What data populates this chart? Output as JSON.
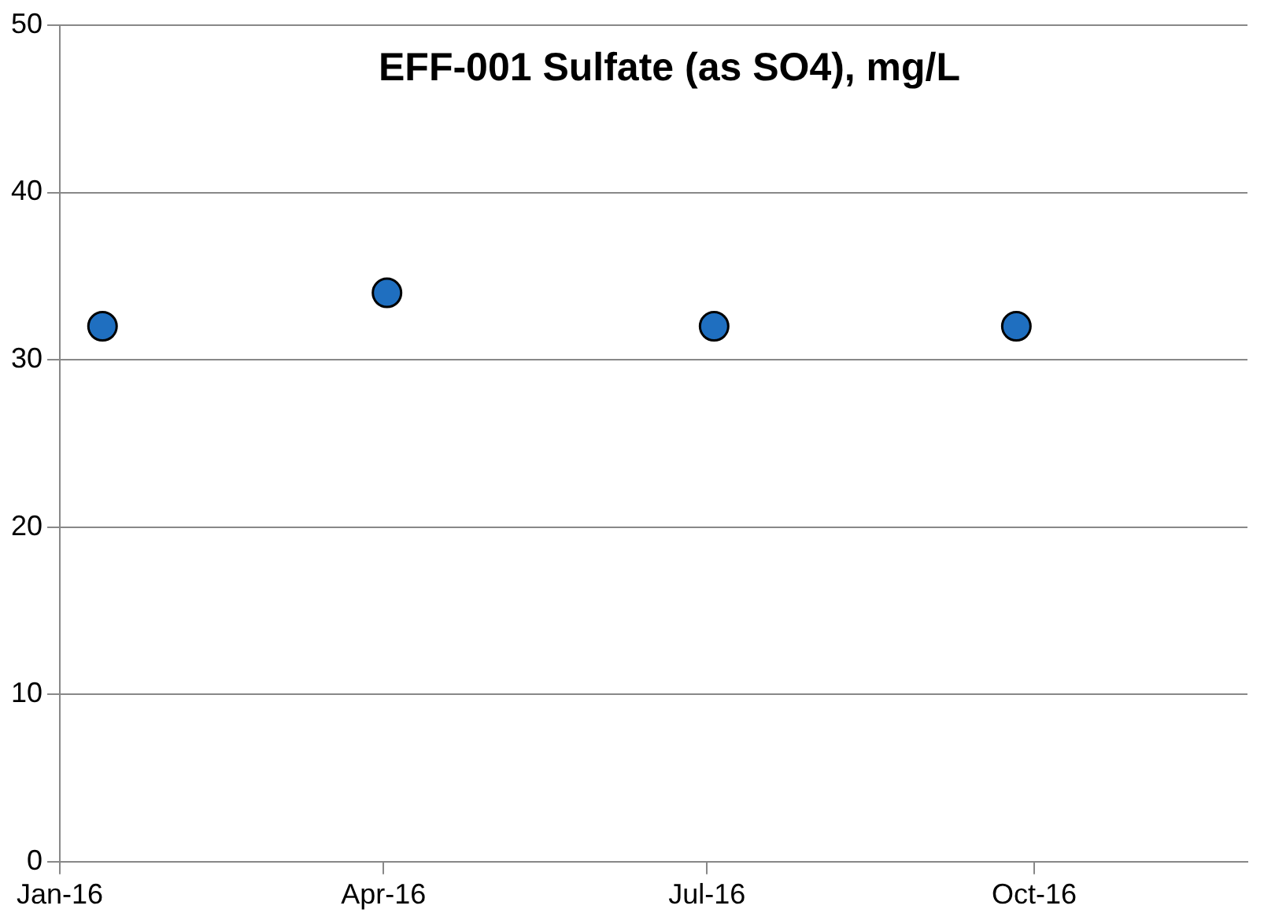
{
  "chart_data": {
    "type": "scatter",
    "title": "EFF-001 Sulfate (as SO4), mg/L",
    "x": [
      "2016-01-13",
      "2016-04-02",
      "2016-07-03",
      "2016-09-26"
    ],
    "series": [
      {
        "color": "#1f6fc0",
        "values": [
          32,
          34,
          32,
          32
        ]
      }
    ],
    "xlim": [
      "2016-01-01",
      "2016-11-30"
    ],
    "xticks": [
      {
        "value": "2016-01-01",
        "label": "Jan-16"
      },
      {
        "value": "2016-04-01",
        "label": "Apr-16"
      },
      {
        "value": "2016-07-01",
        "label": "Jul-16"
      },
      {
        "value": "2016-10-01",
        "label": "Oct-16"
      }
    ],
    "ylim": [
      0,
      50
    ],
    "yticks": [
      0,
      10,
      20,
      30,
      40,
      50
    ],
    "grid": "y",
    "legend": false,
    "marker": "circle"
  }
}
